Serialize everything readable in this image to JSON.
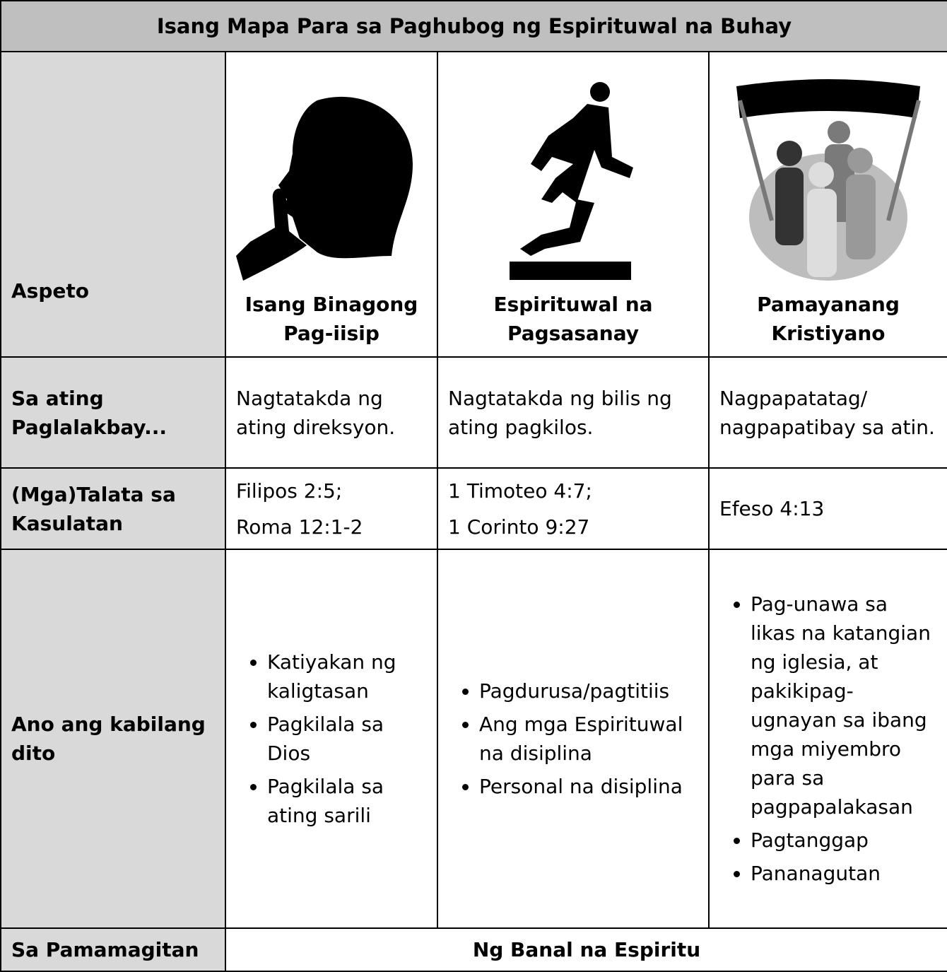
{
  "table": {
    "title": "Isang Mapa Para sa Paghubog ng Espirituwal na Buhay",
    "header": {
      "label": "Aspeto",
      "columns": [
        "Isang Binagong Pag-iisip",
        "Espirituwal na Pagsasanay",
        "Pamayanang Kristiyano"
      ]
    },
    "rows": [
      {
        "label": "Sa ating Paglalakbay...",
        "cells": [
          [
            "Nagtatakda ng ating direksyon."
          ],
          [
            "Nagtatakda ng bilis ng ating pagkilos."
          ],
          [
            "Nagpapatatag/",
            "nagpapatibay sa atin."
          ]
        ]
      },
      {
        "label": "(Mga)Talata sa Kasulatan",
        "cells": [
          [
            "Filipos 2:5;",
            "Roma 12:1-2"
          ],
          [
            "1 Timoteo 4:7;",
            "1 Corinto 9:27"
          ],
          [
            "Efeso 4:13"
          ]
        ]
      }
    ],
    "bullet_row": {
      "label": "Ano ang kabilang dito",
      "cells": [
        [
          "Katiyakan ng kaligtasan",
          "Pagkilala sa Dios",
          "Pagkilala sa ating sarili"
        ],
        [
          "Pagdurusa/pagtitiis",
          "Ang mga Espirituwal na disiplina",
          "Personal na disiplina"
        ],
        [
          "Pag-unawa sa likas na katangian ng iglesia, at pakikipag-ugnayan sa ibang mga miyembro para sa pagpapalakasan",
          "Pagtanggap",
          "Pananagutan"
        ]
      ]
    },
    "footer": {
      "label": "Sa Pamamagitan",
      "text": "Ng Banal na Espiritu"
    }
  }
}
